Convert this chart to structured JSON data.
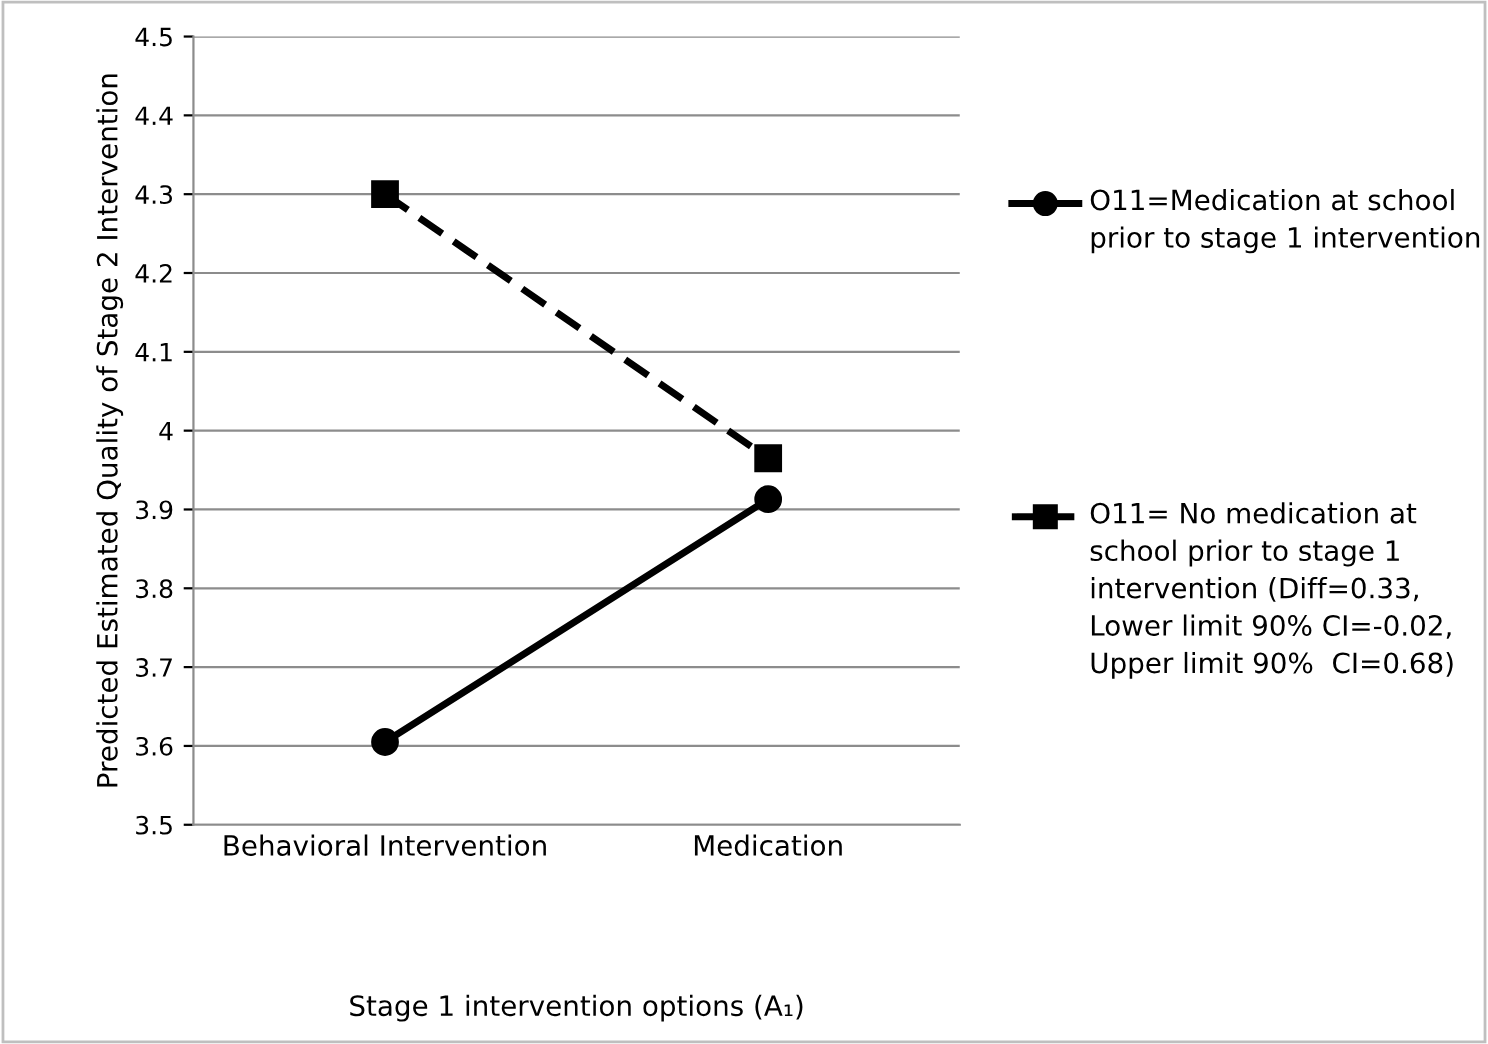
{
  "chart_data": {
    "type": "line",
    "xlabel": "Stage 1 intervention options (A₁)",
    "ylabel": "Predicted Estimated Quality of Stage 2 Intervention",
    "categories": [
      "Behavioral Intervention",
      "Medication"
    ],
    "series": [
      {
        "name": "O11=Medication at school prior to stage 1 intervention",
        "color": "#000000",
        "values": [
          3.605,
          3.913
        ],
        "marker": "circle",
        "line_style": "solid"
      },
      {
        "name": "O11= No medication at school prior to stage 1 intervention (Diff=0.33, Lower limit 90% CI=-0.02, Upper limit 90%  CI=0.68)",
        "color": "#000000",
        "values": [
          4.3,
          3.965
        ],
        "marker": "square",
        "line_style": "dashed"
      }
    ],
    "ylim": [
      3.5,
      4.5
    ],
    "yticks": [
      3.5,
      3.6,
      3.7,
      3.8,
      3.9,
      4,
      4.1,
      4.2,
      4.3,
      4.4,
      4.5
    ],
    "grid": "y",
    "legend": "right"
  }
}
